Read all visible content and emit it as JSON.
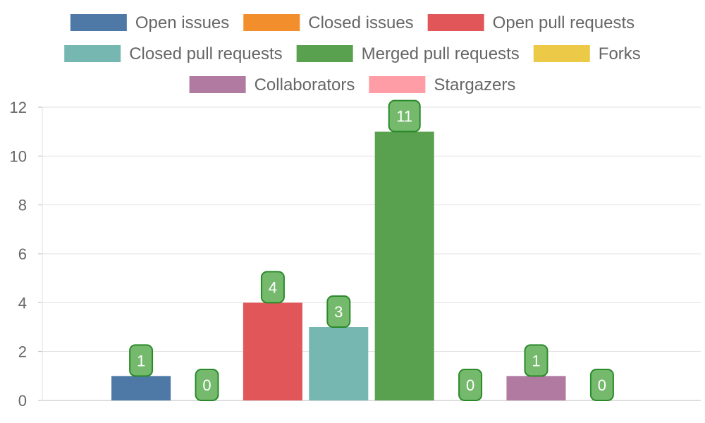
{
  "chart_data": {
    "type": "bar",
    "categories": [
      "Open issues",
      "Closed issues",
      "Open pull requests",
      "Closed pull requests",
      "Merged pull requests",
      "Forks",
      "Collaborators",
      "Stargazers"
    ],
    "values": [
      1,
      0,
      4,
      3,
      11,
      0,
      1,
      0
    ],
    "colors": [
      "#4e79a7",
      "#f28e2b",
      "#e15759",
      "#76b7b2",
      "#59a14f",
      "#edc948",
      "#b07aa1",
      "#ff9da7"
    ],
    "data_label_fill": "#75b96d",
    "data_label_border": "#2a8a2a",
    "title": "",
    "xlabel": "",
    "ylabel": "",
    "ylim": [
      0,
      12
    ],
    "yticks": [
      "0",
      "2",
      "4",
      "6",
      "8",
      "10",
      "12"
    ],
    "grid": true,
    "legend_position": "top"
  }
}
